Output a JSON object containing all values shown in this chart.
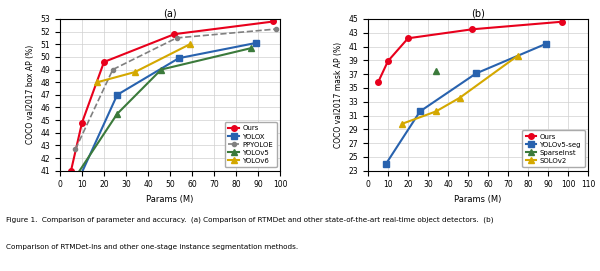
{
  "plot_a": {
    "title": "(a)",
    "xlabel": "Params (M)",
    "ylabel": "COCO val2017 box AP (%)",
    "xlim": [
      0,
      100
    ],
    "ylim": [
      40,
      53
    ],
    "yticks": [
      41,
      42,
      43,
      44,
      45,
      46,
      47,
      48,
      49,
      50,
      51,
      52,
      53
    ],
    "xticks": [
      0,
      10,
      20,
      30,
      40,
      50,
      60,
      70,
      80,
      90,
      100
    ],
    "series": [
      {
        "label": "Ours",
        "color": "#e8001c",
        "marker": "o",
        "markersize": 4,
        "linewidth": 1.5,
        "linestyle": "-",
        "x": [
          5,
          10,
          20,
          52,
          97
        ],
        "y": [
          41.0,
          44.8,
          49.6,
          51.8,
          52.8
        ]
      },
      {
        "label": "YOLOX",
        "color": "#2862ae",
        "marker": "s",
        "markersize": 4,
        "linewidth": 1.5,
        "linestyle": "-",
        "x": [
          9,
          26,
          54,
          89
        ],
        "y": [
          40.5,
          47.0,
          49.9,
          51.1
        ]
      },
      {
        "label": "PPYOLOE",
        "color": "#808080",
        "marker": "o",
        "markersize": 3,
        "linewidth": 1.2,
        "linestyle": "--",
        "x": [
          7,
          24,
          53,
          98
        ],
        "y": [
          42.7,
          49.0,
          51.5,
          52.2
        ]
      },
      {
        "label": "YOLOv5",
        "color": "#3b7a3b",
        "marker": "^",
        "markersize": 4,
        "linewidth": 1.5,
        "linestyle": "-",
        "x": [
          7,
          26,
          46,
          87
        ],
        "y": [
          40.5,
          45.5,
          49.0,
          50.7
        ]
      },
      {
        "label": "YOLOv6",
        "color": "#d4a800",
        "marker": "^",
        "markersize": 4,
        "linewidth": 1.5,
        "linestyle": "-",
        "x": [
          17,
          34,
          59
        ],
        "y": [
          48.0,
          48.8,
          51.0
        ]
      }
    ]
  },
  "plot_b": {
    "title": "(b)",
    "xlabel": "Params (M)",
    "ylabel": "COCO val2017 mask AP (%)",
    "xlim": [
      0,
      110
    ],
    "ylim": [
      23,
      46
    ],
    "yticks": [
      23,
      25,
      27,
      29,
      31,
      33,
      35,
      37,
      39,
      41,
      43,
      45
    ],
    "xticks": [
      0,
      10,
      20,
      30,
      40,
      50,
      60,
      70,
      80,
      90,
      100,
      110
    ],
    "series": [
      {
        "label": "Ours",
        "color": "#e8001c",
        "marker": "o",
        "markersize": 4,
        "linewidth": 1.5,
        "linestyle": "-",
        "x": [
          5,
          10,
          20,
          52,
          97
        ],
        "y": [
          35.8,
          38.9,
          42.2,
          43.5,
          44.6
        ]
      },
      {
        "label": "YOLOv5-seg",
        "color": "#2862ae",
        "marker": "s",
        "markersize": 4,
        "linewidth": 1.5,
        "linestyle": "-",
        "x": [
          9,
          26,
          54,
          89
        ],
        "y": [
          24.0,
          31.6,
          37.1,
          41.4
        ]
      },
      {
        "label": "SparseInst",
        "color": "#3b7a3b",
        "marker": "^",
        "markersize": 4,
        "linewidth": 1.5,
        "linestyle": "-",
        "x": [
          34
        ],
        "y": [
          37.5
        ]
      },
      {
        "label": "SOLOv2",
        "color": "#d4a800",
        "marker": "^",
        "markersize": 4,
        "linewidth": 1.5,
        "linestyle": "-",
        "x": [
          17,
          34,
          46,
          75
        ],
        "y": [
          29.8,
          31.6,
          33.6,
          39.7
        ]
      }
    ]
  },
  "figure_caption_line1": "Figure 1.  Comparison of parameter and accuracy.  (a) Comparison of RTMDet and other state-of-the-art real-time object detectors.  (b)",
  "figure_caption_line2": "Comparison of RTMDet-Ins and other one-stage instance segmentation methods.",
  "background_color": "#ffffff"
}
